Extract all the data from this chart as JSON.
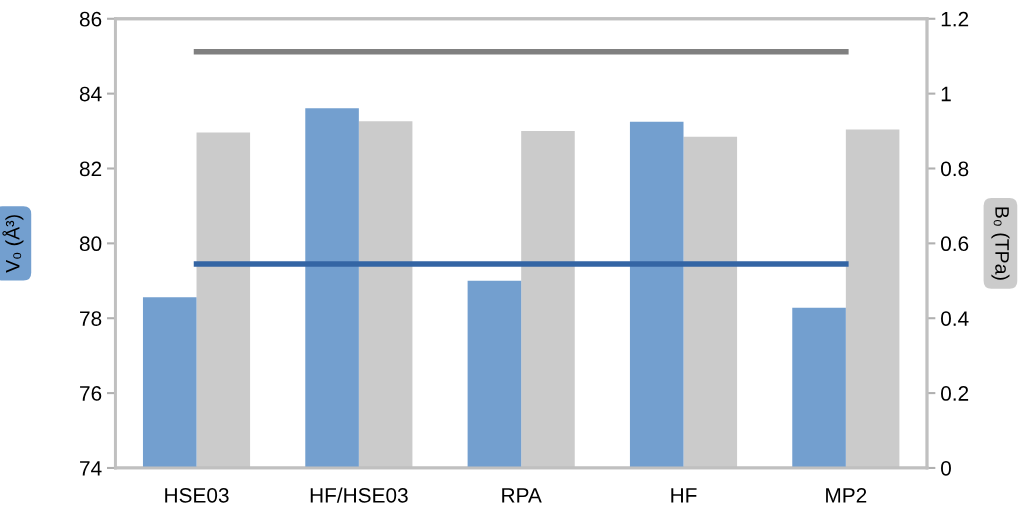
{
  "chart_data": {
    "type": "bar",
    "ylabel": "V₀ (Å³)",
    "y2label": "B₀ (TPa)",
    "categories": [
      "HSE03",
      "HF/HSE03",
      "RPA",
      "HF",
      "MP2"
    ],
    "series": [
      {
        "color": "#739fcf",
        "values": [
          78.56,
          83.61,
          79.0,
          83.25,
          78.28
        ]
      },
      {
        "axis": "y2",
        "color": "#cbcbcb",
        "values": [
          0.896,
          0.926,
          0.9,
          0.885,
          0.904
        ]
      },
      {
        "type": "line",
        "color": "#3465a4",
        "values": [
          79.45,
          79.45,
          79.45,
          79.45,
          79.45
        ]
      },
      {
        "type": "line",
        "axis": "y2",
        "color": "#808080",
        "values": [
          1.112,
          1.112,
          1.112,
          1.112,
          1.112
        ]
      }
    ],
    "ylim": [
      74,
      86
    ],
    "yticks": [
      74,
      76,
      78,
      80,
      82,
      84,
      86
    ],
    "y2lim": [
      0,
      1.2
    ],
    "y2ticks": [
      0,
      0.2,
      0.4,
      0.6,
      0.8,
      1,
      1.2
    ],
    "grid": false,
    "legend": false,
    "marker": "none",
    "line_style": "solid"
  }
}
